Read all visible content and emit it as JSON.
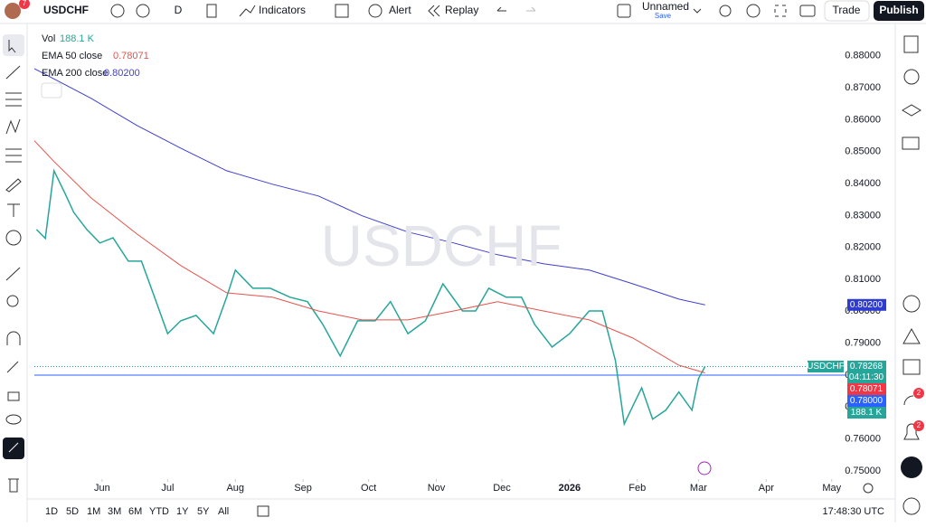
{
  "toolbar": {
    "symbol": "USDCHF",
    "interval": "D",
    "indicators": "Indicators",
    "alert": "Alert",
    "replay": "Replay",
    "layout": "Unnamed",
    "save": "Save",
    "trade": "Trade",
    "publish": "Publish",
    "avatar_badge": "7"
  },
  "chart_data": {
    "type": "line",
    "watermark": "USDCHF",
    "volume_label": "Vol",
    "volume_value": "188.1 K",
    "xlim": [
      -31,
      361
    ],
    "ylim": [
      0.748,
      0.889
    ],
    "xticks": [
      {
        "value": 0,
        "label": "Jun"
      },
      {
        "value": 30,
        "label": "Jul"
      },
      {
        "value": 61,
        "label": "Aug"
      },
      {
        "value": 92,
        "label": "Sep"
      },
      {
        "value": 122,
        "label": "Oct"
      },
      {
        "value": 153,
        "label": "Nov"
      },
      {
        "value": 183,
        "label": "Dec"
      },
      {
        "value": 214,
        "label": "2026"
      },
      {
        "value": 245,
        "label": "Feb"
      },
      {
        "value": 273,
        "label": "Mar"
      },
      {
        "value": 304,
        "label": "Apr"
      },
      {
        "value": 334,
        "label": "May"
      }
    ],
    "yticks": [
      {
        "value": 0.75,
        "label": "0.75000"
      },
      {
        "value": 0.76,
        "label": "0.76000"
      },
      {
        "value": 0.77,
        "label": "0.77000"
      },
      {
        "value": 0.78,
        "label": "0.78000"
      },
      {
        "value": 0.79,
        "label": "0.79000"
      },
      {
        "value": 0.8,
        "label": "0.80000"
      },
      {
        "value": 0.81,
        "label": "0.81000"
      },
      {
        "value": 0.82,
        "label": "0.82000"
      },
      {
        "value": 0.83,
        "label": "0.83000"
      },
      {
        "value": 0.84,
        "label": "0.84000"
      },
      {
        "value": 0.85,
        "label": "0.85000"
      },
      {
        "value": 0.86,
        "label": "0.86000"
      },
      {
        "value": 0.87,
        "label": "0.87000"
      },
      {
        "value": 0.88,
        "label": "0.88000"
      }
    ],
    "series": [
      {
        "name": "USDCHF",
        "color": "#26a69a",
        "x": [
          -30,
          -26,
          -22,
          -17,
          -13,
          -7,
          -1,
          5,
          12,
          18,
          24,
          30,
          36,
          43,
          51,
          57,
          61,
          69,
          77,
          86,
          94,
          101,
          109,
          117,
          125,
          132,
          140,
          148,
          156,
          165,
          171,
          177,
          185,
          192,
          198,
          206,
          214,
          223,
          229,
          235,
          239,
          243,
          247,
          252,
          258,
          264,
          270,
          273,
          276
        ],
        "values": [
          0.8256,
          0.8228,
          0.844,
          0.837,
          0.831,
          0.8256,
          0.8214,
          0.823,
          0.8157,
          0.8157,
          0.8044,
          0.793,
          0.797,
          0.7987,
          0.793,
          0.8044,
          0.8129,
          0.8072,
          0.8072,
          0.8044,
          0.803,
          0.7959,
          0.786,
          0.797,
          0.797,
          0.803,
          0.793,
          0.797,
          0.8086,
          0.8001,
          0.8001,
          0.8072,
          0.8044,
          0.8044,
          0.7959,
          0.7888,
          0.793,
          0.8001,
          0.8001,
          0.7845,
          0.7647,
          0.7704,
          0.776,
          0.7662,
          0.769,
          0.7747,
          0.769,
          0.7789,
          0.7827
        ]
      },
      {
        "name": "EMA 50 close",
        "last": "0.78071",
        "color": "#e5534b",
        "x": [
          -31,
          -22,
          -5,
          16,
          36,
          57,
          78,
          99,
          119,
          140,
          161,
          181,
          202,
          223,
          243,
          264,
          276
        ],
        "values": [
          0.8534,
          0.8469,
          0.8355,
          0.8242,
          0.8143,
          0.8058,
          0.8044,
          0.8001,
          0.7973,
          0.7973,
          0.8001,
          0.803,
          0.8001,
          0.7973,
          0.7916,
          0.7831,
          0.7807
        ]
      },
      {
        "name": "EMA 200 close",
        "last": "0.80200",
        "color": "#3f3fd0",
        "x": [
          -31,
          -5,
          16,
          36,
          57,
          78,
          99,
          119,
          140,
          161,
          181,
          202,
          223,
          243,
          264,
          276
        ],
        "values": [
          0.876,
          0.8667,
          0.8582,
          0.8511,
          0.844,
          0.8398,
          0.8361,
          0.8299,
          0.8248,
          0.8214,
          0.8177,
          0.8149,
          0.8129,
          0.8086,
          0.8038,
          0.802
        ]
      }
    ],
    "hlines": [
      {
        "value": 0.78,
        "label": "0.78000",
        "color": "#2962ff"
      },
      {
        "value": 0.78268,
        "label": "0.78268",
        "color": "#26a69a"
      }
    ],
    "badges": {
      "symbol": "USDCHF",
      "countdown": "04:11:30",
      "ema50": "0.78071",
      "ema200": "0.80200",
      "volume": "188.1 K"
    }
  },
  "bottom": {
    "ranges": [
      "1D",
      "5D",
      "1M",
      "3M",
      "6M",
      "YTD",
      "1Y",
      "5Y",
      "All"
    ],
    "clock": "17:48:30 UTC"
  },
  "sidebar": {
    "badges": [
      "2",
      "2"
    ]
  }
}
